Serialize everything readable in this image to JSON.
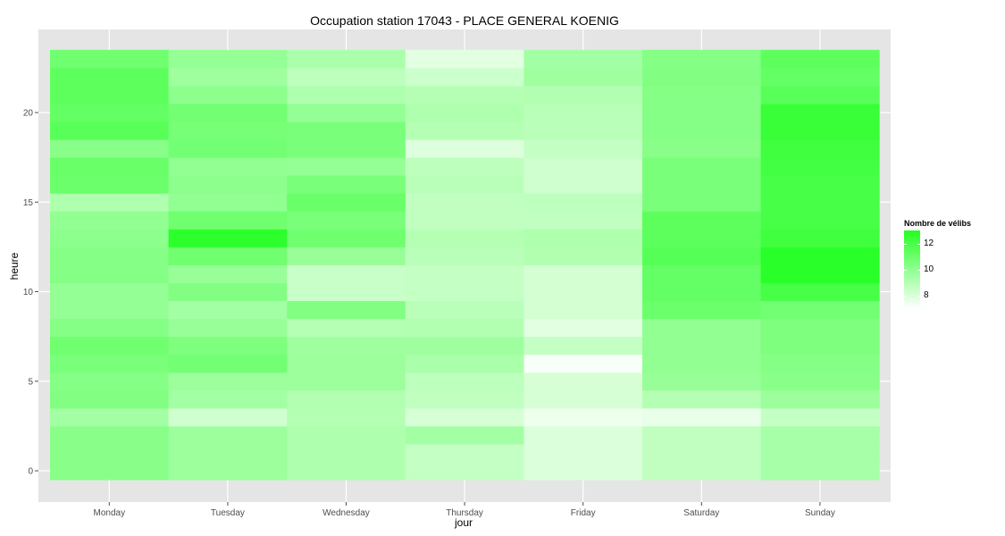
{
  "chart_data": {
    "type": "heatmap",
    "title": "Occupation station 17043 - PLACE GENERAL KOENIG",
    "xlabel": "jour",
    "ylabel": "heure",
    "x_categories": [
      "Monday",
      "Tuesday",
      "Wednesday",
      "Thursday",
      "Friday",
      "Saturday",
      "Sunday"
    ],
    "y_values": [
      0,
      1,
      2,
      3,
      4,
      5,
      6,
      7,
      8,
      9,
      10,
      11,
      12,
      13,
      14,
      15,
      16,
      17,
      18,
      19,
      20,
      21,
      22,
      23
    ],
    "y_ticks": [
      0,
      5,
      10,
      15,
      20
    ],
    "ylim": [
      -0.5,
      23.5
    ],
    "values": [
      [
        10.2,
        10.2,
        10.2,
        9.5,
        10.4,
        10.3,
        10.6,
        10.9,
        10.3,
        9.9,
        9.9,
        10.3,
        10.3,
        10.1,
        10.0,
        9.2,
        11.0,
        11.1,
        10.2,
        11.5,
        11.2,
        11.4,
        11.4,
        10.9
      ],
      [
        9.7,
        9.7,
        9.7,
        8.3,
        9.5,
        9.7,
        10.8,
        10.5,
        9.8,
        9.5,
        10.4,
        9.8,
        10.9,
        12.7,
        10.9,
        10.0,
        10.1,
        10.0,
        10.8,
        10.7,
        10.8,
        10.1,
        9.6,
        9.9
      ],
      [
        9.2,
        9.2,
        9.2,
        9.0,
        9.1,
        9.7,
        9.7,
        9.6,
        9.0,
        10.4,
        8.5,
        8.5,
        9.8,
        10.9,
        10.6,
        11.1,
        10.6,
        9.9,
        10.6,
        10.6,
        9.9,
        9.2,
        8.8,
        9.3
      ],
      [
        8.6,
        8.6,
        9.5,
        8.1,
        8.7,
        8.8,
        9.3,
        9.6,
        9.1,
        8.9,
        8.6,
        8.6,
        8.9,
        9.0,
        8.7,
        8.7,
        8.9,
        8.8,
        7.9,
        9.0,
        9.2,
        9.0,
        8.4,
        7.8
      ],
      [
        8.0,
        8.0,
        8.0,
        7.5,
        8.1,
        8.1,
        7.2,
        8.6,
        7.8,
        8.2,
        8.2,
        8.2,
        9.1,
        9.2,
        8.7,
        8.8,
        8.3,
        8.3,
        8.6,
        8.9,
        8.9,
        9.1,
        9.6,
        9.5
      ],
      [
        8.7,
        8.7,
        8.7,
        7.6,
        9.0,
        9.8,
        10.0,
        10.0,
        10.0,
        11.0,
        11.2,
        11.2,
        11.6,
        11.4,
        11.4,
        10.6,
        10.6,
        10.6,
        10.2,
        10.3,
        10.3,
        10.3,
        10.4,
        10.3
      ],
      [
        9.4,
        9.4,
        9.4,
        8.6,
        9.7,
        10.2,
        10.3,
        10.5,
        10.5,
        10.8,
        12.0,
        12.8,
        12.8,
        12.2,
        12.0,
        12.0,
        12.0,
        12.1,
        12.2,
        12.4,
        12.4,
        11.5,
        11.2,
        11.4
      ]
    ]
  },
  "legend": {
    "title": "Nombre de vélibs",
    "ticks": [
      {
        "value": 12,
        "label": "12"
      },
      {
        "value": 10,
        "label": "10"
      },
      {
        "value": 8,
        "label": "8"
      }
    ],
    "range": [
      7,
      13
    ],
    "color_high": "#22ff22",
    "color_low": "#ffffff"
  },
  "colors": {
    "panel_background": "#e5e5e5",
    "grid": "#ffffff"
  }
}
